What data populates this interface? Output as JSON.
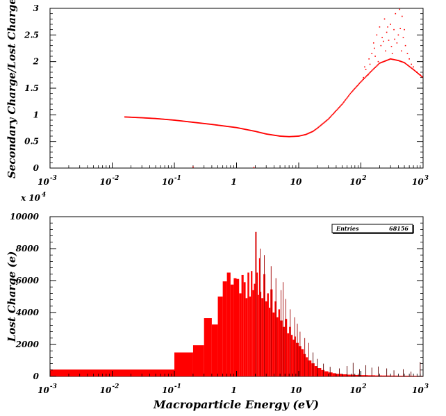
{
  "chart_data": [
    {
      "type": "scatter",
      "title": "",
      "xlabel": "",
      "ylabel": "Secondary Charge/Lost Charge",
      "x_scale": "log",
      "xlim": [
        0.001,
        1000
      ],
      "ylim": [
        0,
        3
      ],
      "x_tick_labels": [
        {
          "base": "10",
          "exp": "-3"
        },
        {
          "base": "10",
          "exp": "-2"
        },
        {
          "base": "10",
          "exp": "-1"
        },
        {
          "base": "1",
          "exp": ""
        },
        {
          "base": "10",
          "exp": ""
        },
        {
          "base": "10",
          "exp": "2"
        },
        {
          "base": "10",
          "exp": "3"
        }
      ],
      "y_tick_labels": [
        "0",
        "0.5",
        "1",
        "1.5",
        "2",
        "2.5",
        "3"
      ],
      "color": "#ff0000",
      "curve": [
        [
          0.016,
          0.96
        ],
        [
          0.03,
          0.945
        ],
        [
          0.05,
          0.93
        ],
        [
          0.1,
          0.9
        ],
        [
          0.2,
          0.86
        ],
        [
          0.4,
          0.82
        ],
        [
          1,
          0.76
        ],
        [
          2,
          0.69
        ],
        [
          3,
          0.64
        ],
        [
          5,
          0.6
        ],
        [
          7,
          0.59
        ],
        [
          10,
          0.6
        ],
        [
          13,
          0.63
        ],
        [
          17,
          0.69
        ],
        [
          20,
          0.75
        ],
        [
          30,
          0.92
        ],
        [
          50,
          1.2
        ],
        [
          70,
          1.42
        ],
        [
          100,
          1.62
        ],
        [
          150,
          1.83
        ],
        [
          200,
          1.97
        ],
        [
          300,
          2.05
        ],
        [
          400,
          2.02
        ],
        [
          500,
          1.98
        ],
        [
          700,
          1.85
        ],
        [
          1000,
          1.7
        ]
      ],
      "scatter_points": [
        [
          120,
          1.85
        ],
        [
          140,
          1.95
        ],
        [
          150,
          2.15
        ],
        [
          160,
          2.35
        ],
        [
          170,
          2.1
        ],
        [
          180,
          2.5
        ],
        [
          190,
          2.0
        ],
        [
          200,
          2.65
        ],
        [
          210,
          2.3
        ],
        [
          220,
          2.45
        ],
        [
          240,
          2.8
        ],
        [
          250,
          2.2
        ],
        [
          260,
          2.55
        ],
        [
          280,
          2.4
        ],
        [
          300,
          2.7
        ],
        [
          320,
          2.15
        ],
        [
          340,
          2.6
        ],
        [
          360,
          2.9
        ],
        [
          380,
          2.35
        ],
        [
          400,
          2.5
        ],
        [
          420,
          2.98
        ],
        [
          450,
          2.2
        ],
        [
          480,
          2.45
        ],
        [
          520,
          2.3
        ],
        [
          560,
          2.15
        ],
        [
          600,
          2.05
        ],
        [
          650,
          1.95
        ],
        [
          700,
          1.9
        ],
        [
          800,
          1.8
        ],
        [
          900,
          1.75
        ],
        [
          130,
          1.75
        ],
        [
          110,
          1.7
        ],
        [
          115,
          1.9
        ],
        [
          135,
          2.05
        ],
        [
          165,
          2.25
        ],
        [
          230,
          2.38
        ],
        [
          270,
          2.65
        ],
        [
          310,
          2.28
        ],
        [
          350,
          2.42
        ],
        [
          430,
          2.62
        ],
        [
          460,
          2.85
        ],
        [
          500,
          2.6
        ],
        [
          1.9,
          0.01
        ],
        [
          0.2,
          0.02
        ]
      ]
    },
    {
      "type": "bar",
      "title": "",
      "xlabel": "Macroparticle Energy (eV)",
      "ylabel": "Lost Charge (e)",
      "x_scale": "log",
      "xlim": [
        0.001,
        1000
      ],
      "ylim": [
        0,
        10000
      ],
      "y_multiplier": {
        "base": "x 10",
        "exp": "4"
      },
      "x_tick_labels": [
        {
          "base": "10",
          "exp": "-3"
        },
        {
          "base": "10",
          "exp": "-2"
        },
        {
          "base": "10",
          "exp": "-1"
        },
        {
          "base": "1",
          "exp": ""
        },
        {
          "base": "10",
          "exp": ""
        },
        {
          "base": "10",
          "exp": "2"
        },
        {
          "base": "10",
          "exp": "3"
        }
      ],
      "y_tick_labels": [
        "0",
        "2000",
        "4000",
        "6000",
        "8000",
        "10000"
      ],
      "legend": {
        "label": "Entries",
        "value": "68156",
        "position": "top-right"
      },
      "color": "#ff0000",
      "bins": [
        [
          0.001,
          0.1,
          430
        ],
        [
          0.1,
          0.2,
          1500
        ],
        [
          0.2,
          0.3,
          1950
        ],
        [
          0.3,
          0.4,
          3650
        ],
        [
          0.4,
          0.5,
          3250
        ],
        [
          0.5,
          0.6,
          5000
        ],
        [
          0.6,
          0.7,
          5950
        ],
        [
          0.7,
          0.8,
          6500
        ],
        [
          0.8,
          0.9,
          5750
        ],
        [
          0.9,
          1.0,
          6150
        ],
        [
          1.0,
          1.1,
          6100
        ],
        [
          1.1,
          1.2,
          5200
        ],
        [
          1.2,
          1.3,
          6350
        ],
        [
          1.3,
          1.4,
          5900
        ],
        [
          1.4,
          1.5,
          4900
        ],
        [
          1.5,
          1.6,
          6500
        ],
        [
          1.6,
          1.7,
          5000
        ],
        [
          1.7,
          1.8,
          6600
        ],
        [
          1.8,
          1.9,
          5400
        ],
        [
          1.9,
          2.0,
          5800
        ],
        [
          2.0,
          2.1,
          9050
        ],
        [
          2.1,
          2.2,
          6500
        ],
        [
          2.2,
          2.3,
          5100
        ],
        [
          2.3,
          2.4,
          7400
        ],
        [
          2.4,
          2.5,
          5300
        ],
        [
          2.5,
          2.7,
          4900
        ],
        [
          2.7,
          2.9,
          6400
        ],
        [
          2.9,
          3.1,
          4700
        ],
        [
          3.1,
          3.3,
          5200
        ],
        [
          3.3,
          3.5,
          4300
        ],
        [
          3.5,
          3.8,
          5450
        ],
        [
          3.8,
          4.1,
          4000
        ],
        [
          4.1,
          4.4,
          4700
        ],
        [
          4.4,
          4.7,
          3700
        ],
        [
          4.7,
          5.0,
          4200
        ],
        [
          5.0,
          5.5,
          3500
        ],
        [
          5.5,
          6.0,
          3100
        ],
        [
          6.0,
          6.5,
          3600
        ],
        [
          6.5,
          7.0,
          2700
        ],
        [
          7.0,
          7.5,
          3100
        ],
        [
          7.5,
          8.0,
          2600
        ],
        [
          8.0,
          8.5,
          2300
        ],
        [
          8.5,
          9.0,
          2500
        ],
        [
          9.0,
          10.0,
          2100
        ],
        [
          10,
          11,
          1900
        ],
        [
          11,
          12,
          1700
        ],
        [
          12,
          13,
          1400
        ],
        [
          13,
          14,
          1200
        ],
        [
          14,
          16,
          1000
        ],
        [
          16,
          18,
          820
        ],
        [
          18,
          20,
          650
        ],
        [
          20,
          23,
          520
        ],
        [
          23,
          26,
          400
        ],
        [
          26,
          30,
          320
        ],
        [
          30,
          35,
          250
        ],
        [
          35,
          40,
          200
        ],
        [
          40,
          50,
          160
        ],
        [
          50,
          60,
          130
        ],
        [
          60,
          80,
          110
        ],
        [
          80,
          100,
          90
        ],
        [
          100,
          130,
          80
        ],
        [
          130,
          170,
          70
        ],
        [
          170,
          220,
          60
        ],
        [
          220,
          300,
          55
        ],
        [
          300,
          400,
          50
        ],
        [
          400,
          600,
          45
        ],
        [
          600,
          1000,
          40
        ]
      ],
      "spikes": [
        [
          2.05,
          9050
        ],
        [
          2.4,
          8000
        ],
        [
          2.8,
          7600
        ],
        [
          3.6,
          6900
        ],
        [
          4.3,
          6150
        ],
        [
          5.2,
          5400
        ],
        [
          5.6,
          5900
        ],
        [
          6.2,
          4850
        ],
        [
          7.3,
          4200
        ],
        [
          8.6,
          3700
        ],
        [
          9.5,
          3300
        ],
        [
          10.5,
          2800
        ],
        [
          12.5,
          2400
        ],
        [
          14.5,
          2100
        ],
        [
          17.0,
          1500
        ],
        [
          20.0,
          1100
        ],
        [
          25.0,
          800
        ],
        [
          32.0,
          600
        ],
        [
          45.0,
          500
        ],
        [
          60.0,
          650
        ],
        [
          75.0,
          850
        ],
        [
          95.0,
          450
        ],
        [
          120.0,
          700
        ],
        [
          150.0,
          550
        ],
        [
          190.0,
          620
        ],
        [
          260.0,
          500
        ],
        [
          340.0,
          380
        ],
        [
          480.0,
          450
        ],
        [
          640.0,
          300
        ],
        [
          900.0,
          900
        ]
      ]
    }
  ]
}
